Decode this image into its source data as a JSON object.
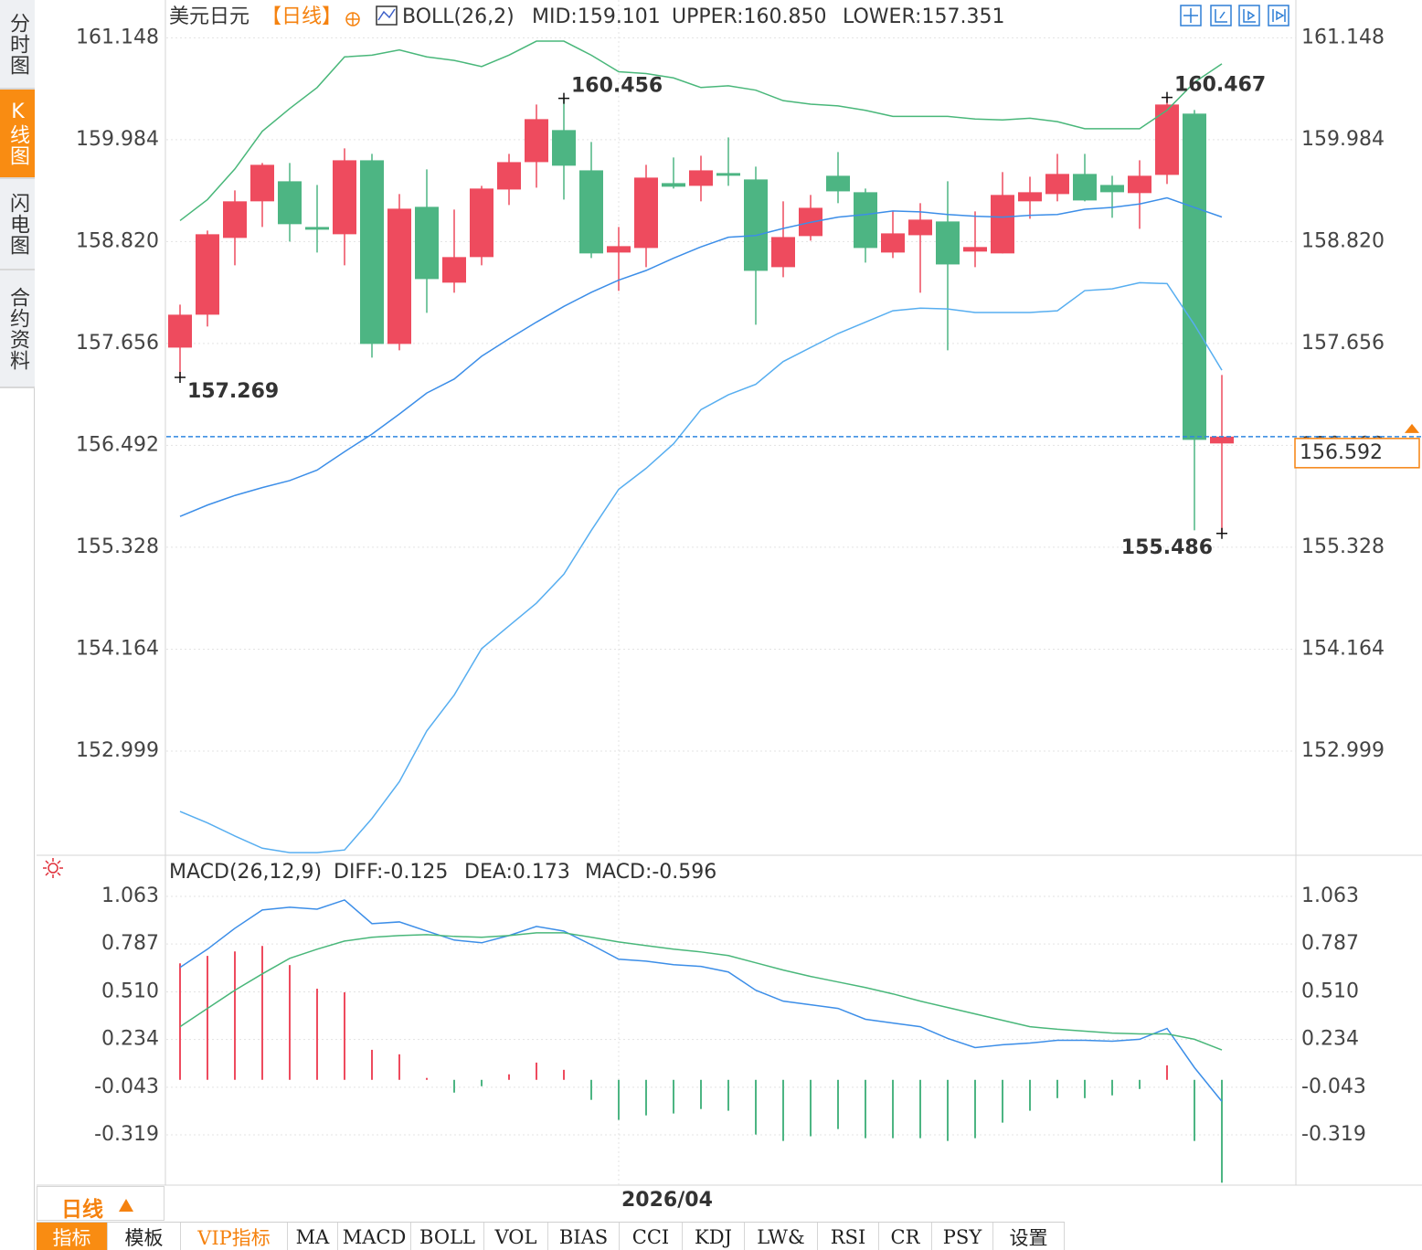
{
  "sidebar": [
    "分时图",
    "K线图",
    "闪电图",
    "合约资料"
  ],
  "period": "日线",
  "toolbar": [
    "指标",
    "模板",
    "VIP指标",
    "MA",
    "MACD",
    "BOLL",
    "VOL",
    "BIAS",
    "CCI",
    "KDJ",
    "LW&",
    "RSI",
    "CR",
    "PSY",
    "设置"
  ],
  "chart_data": [
    {
      "type": "candlestick",
      "title": "美元日元",
      "subtitle": "【日线】",
      "indicator": "BOLL(26,2)",
      "categories": [
        null,
        null,
        null,
        null,
        null,
        null,
        null,
        null,
        null,
        null,
        null,
        null,
        null,
        null,
        null,
        null,
        "2026/04",
        null,
        null,
        null,
        null,
        null,
        null,
        null,
        null,
        null,
        null,
        null,
        null,
        null,
        null,
        null,
        null,
        null,
        null,
        null,
        null,
        null,
        null
      ],
      "open": [
        157.609,
        157.985,
        158.862,
        159.28,
        159.509,
        158.987,
        158.904,
        159.749,
        157.651,
        159.217,
        158.351,
        158.643,
        159.415,
        159.728,
        160.094,
        159.634,
        158.695,
        158.747,
        159.488,
        159.457,
        159.603,
        159.53,
        158.528,
        158.883,
        159.572,
        159.384,
        158.695,
        158.893,
        159.05,
        158.706,
        158.685,
        159.28,
        159.363,
        159.593,
        159.467,
        159.374,
        159.582,
        160.282,
        156.514
      ],
      "high": [
        158.1,
        158.946,
        159.405,
        159.718,
        159.718,
        159.467,
        159.885,
        159.822,
        159.363,
        159.645,
        159.186,
        159.457,
        159.822,
        160.386,
        160.456,
        159.958,
        158.987,
        159.697,
        159.781,
        159.801,
        160.01,
        159.676,
        159.28,
        159.353,
        159.843,
        159.426,
        159.165,
        159.259,
        159.509,
        159.165,
        159.614,
        159.561,
        159.822,
        159.822,
        159.572,
        159.749,
        160.467,
        160.323,
        157.296
      ],
      "low": [
        157.269,
        157.85,
        158.549,
        158.987,
        158.82,
        158.695,
        158.549,
        157.495,
        157.578,
        158.006,
        158.236,
        158.549,
        159.238,
        159.436,
        159.3,
        158.632,
        158.257,
        158.528,
        159.426,
        159.28,
        159.457,
        157.87,
        158.413,
        158.831,
        159.259,
        158.58,
        158.632,
        158.236,
        157.578,
        158.528,
        158.685,
        159.081,
        159.28,
        159.28,
        159.092,
        158.966,
        159.478,
        155.522,
        155.486
      ],
      "close": [
        157.985,
        158.904,
        159.28,
        159.697,
        159.019,
        158.956,
        159.749,
        157.651,
        159.196,
        158.392,
        158.643,
        159.426,
        159.728,
        160.219,
        159.687,
        158.685,
        158.768,
        159.551,
        159.447,
        159.634,
        159.572,
        158.486,
        158.872,
        159.206,
        159.394,
        158.747,
        158.914,
        159.071,
        158.559,
        158.758,
        159.353,
        159.384,
        159.593,
        159.29,
        159.384,
        159.572,
        160.386,
        156.555,
        156.592
      ],
      "up_color": "#ee4b5e",
      "down_color": "#4db583",
      "series": [
        {
          "name": "MID:159.101",
          "color": "#3c8ee8",
          "values": [
            155.68,
            155.81,
            155.92,
            156.01,
            156.09,
            156.21,
            156.42,
            156.62,
            156.85,
            157.09,
            157.25,
            157.51,
            157.71,
            157.9,
            158.08,
            158.24,
            158.38,
            158.49,
            158.63,
            158.76,
            158.87,
            158.89,
            158.97,
            159.04,
            159.1,
            159.13,
            159.17,
            159.16,
            159.13,
            159.11,
            159.1,
            159.12,
            159.13,
            159.19,
            159.21,
            159.25,
            159.32,
            159.21,
            159.101
          ]
        },
        {
          "name": "UPPER:160.850",
          "color": "#49b77a",
          "values": [
            159.06,
            159.3,
            159.65,
            160.08,
            160.34,
            160.58,
            160.93,
            160.95,
            161.01,
            160.93,
            160.89,
            160.82,
            160.95,
            161.11,
            161.11,
            160.95,
            160.76,
            160.74,
            160.69,
            160.58,
            160.6,
            160.55,
            160.43,
            160.39,
            160.37,
            160.32,
            160.25,
            160.25,
            160.25,
            160.22,
            160.21,
            160.23,
            160.19,
            160.11,
            160.11,
            160.11,
            160.32,
            160.64,
            160.85
          ]
        },
        {
          "name": "LOWER:157.351",
          "color": "#57aef0",
          "values": [
            152.31,
            152.18,
            152.03,
            151.89,
            151.84,
            151.84,
            151.87,
            152.23,
            152.65,
            153.23,
            153.64,
            154.17,
            154.43,
            154.69,
            155.02,
            155.52,
            155.99,
            156.23,
            156.51,
            156.9,
            157.07,
            157.19,
            157.45,
            157.61,
            157.77,
            157.9,
            158.03,
            158.06,
            158.05,
            158.01,
            158.01,
            158.01,
            158.03,
            158.26,
            158.28,
            158.35,
            158.34,
            157.87,
            157.351
          ]
        }
      ],
      "annotations": [
        {
          "index": 14,
          "value": 160.456,
          "color": "#ee4b5e"
        },
        {
          "index": 0,
          "value": 157.269,
          "color": "#4db583"
        },
        {
          "index": 36,
          "value": 160.467,
          "color": "#ee4b5e"
        },
        {
          "index": 38,
          "value": 155.486,
          "color": "#4db583"
        }
      ],
      "last_price": {
        "value": 156.592,
        "line_color": "#2f86e0",
        "label_color": "#f5820f"
      },
      "ylim": [
        151.82,
        161.58
      ],
      "yticks": [
        161.148,
        159.984,
        {
          "value": 158.82,
          "label": "158.820"
        },
        157.656,
        156.492,
        155.328,
        154.164,
        152.999
      ],
      "grid": true
    },
    {
      "type": "line",
      "title": "MACD(26,12,9)",
      "series": [
        {
          "name": "DIFF:-0.125",
          "color": "#3c8ee8",
          "values": [
            0.651,
            0.757,
            0.878,
            0.984,
            1.0,
            0.989,
            1.042,
            0.905,
            0.915,
            0.862,
            0.81,
            0.794,
            0.836,
            0.889,
            0.862,
            0.783,
            0.699,
            0.688,
            0.667,
            0.657,
            0.625,
            0.519,
            0.456,
            0.435,
            0.414,
            0.351,
            0.329,
            0.308,
            0.24,
            0.187,
            0.203,
            0.213,
            0.229,
            0.229,
            0.224,
            0.235,
            0.298,
            0.071,
            -0.125
          ]
        },
        {
          "name": "DEA:0.173",
          "color": "#49b77a",
          "values": [
            0.308,
            0.414,
            0.519,
            0.614,
            0.704,
            0.757,
            0.804,
            0.826,
            0.836,
            0.841,
            0.831,
            0.826,
            0.836,
            0.852,
            0.852,
            0.826,
            0.799,
            0.778,
            0.757,
            0.741,
            0.72,
            0.678,
            0.636,
            0.599,
            0.567,
            0.535,
            0.498,
            0.456,
            0.419,
            0.382,
            0.345,
            0.308,
            0.293,
            0.282,
            0.271,
            0.266,
            0.266,
            0.235,
            0.173
          ]
        },
        {
          "name": "MACD:-0.596",
          "color": "#57aef0",
          "up_color": "#ee4b5e",
          "down_color": "#4db583",
          "values": [
            0.675,
            0.718,
            0.744,
            0.776,
            0.665,
            0.528,
            0.507,
            0.174,
            0.148,
            0.011,
            -0.074,
            -0.037,
            0.032,
            0.1,
            0.058,
            -0.116,
            -0.232,
            -0.206,
            -0.195,
            -0.169,
            -0.179,
            -0.317,
            -0.354,
            -0.327,
            -0.285,
            -0.338,
            -0.338,
            -0.338,
            -0.354,
            -0.338,
            -0.248,
            -0.179,
            -0.106,
            -0.106,
            -0.09,
            -0.053,
            0.084,
            -0.354,
            -0.596
          ]
        }
      ],
      "ylim": [
        -0.61,
        1.28
      ],
      "yticks": [
        1.063,
        0.787,
        {
          "value": 0.51,
          "label": "0.510"
        },
        0.234,
        -0.043,
        -0.319
      ],
      "grid": true
    }
  ]
}
